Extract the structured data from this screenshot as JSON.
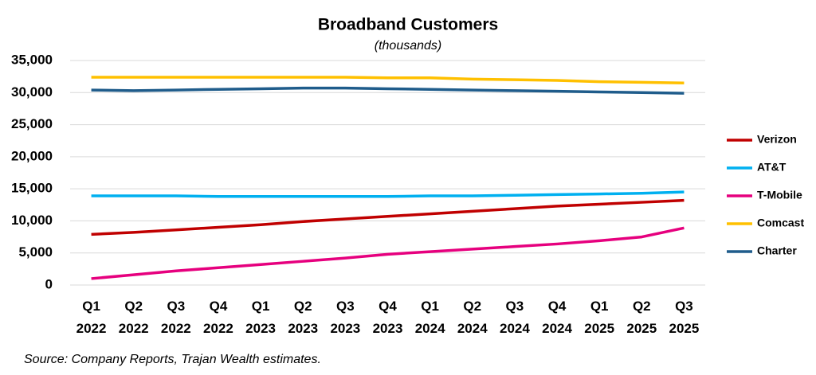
{
  "chart_data": {
    "type": "line",
    "title": "Broadband Customers",
    "subtitle": "(thousands)",
    "source": "Source: Company Reports, Trajan Wealth estimates.",
    "categories": [
      "Q1 2022",
      "Q2 2022",
      "Q3 2022",
      "Q4 2022",
      "Q1 2023",
      "Q2 2023",
      "Q3 2023",
      "Q4 2023",
      "Q1 2024",
      "Q2 2024",
      "Q3 2024",
      "Q4 2024",
      "Q1 2025",
      "Q2 2025",
      "Q3 2025"
    ],
    "series": [
      {
        "name": "Verizon",
        "color": "#c00000",
        "values": [
          7900,
          8200,
          8600,
          9000,
          9400,
          9900,
          10300,
          10700,
          11100,
          11500,
          11900,
          12300,
          12600,
          12900,
          13200
        ]
      },
      {
        "name": "AT&T",
        "color": "#00b0f0",
        "values": [
          13900,
          13900,
          13900,
          13800,
          13800,
          13800,
          13800,
          13800,
          13900,
          13900,
          14000,
          14100,
          14200,
          14300,
          14500
        ]
      },
      {
        "name": "T-Mobile",
        "color": "#e6007e",
        "values": [
          1000,
          1600,
          2200,
          2700,
          3200,
          3700,
          4200,
          4800,
          5200,
          5600,
          6000,
          6400,
          6900,
          7500,
          8900
        ]
      },
      {
        "name": "Comcast",
        "color": "#ffc000",
        "values": [
          32400,
          32400,
          32400,
          32400,
          32400,
          32400,
          32400,
          32300,
          32300,
          32100,
          32000,
          31900,
          31700,
          31600,
          31500
        ]
      },
      {
        "name": "Charter",
        "color": "#1f5c8b",
        "values": [
          30400,
          30300,
          30400,
          30500,
          30600,
          30700,
          30700,
          30600,
          30500,
          30400,
          30300,
          30200,
          30100,
          30000,
          29900
        ]
      }
    ],
    "ylim": [
      0,
      35000
    ],
    "yticks": [
      0,
      {
        "value": 5000,
        "label": "5,000"
      },
      {
        "value": 10000,
        "label": "10,000"
      },
      {
        "value": 15000,
        "label": "15,000"
      },
      {
        "value": 20000,
        "label": "20,000"
      },
      {
        "value": 25000,
        "label": "25,000"
      },
      {
        "value": 30000,
        "label": "30,000"
      },
      {
        "value": 35000,
        "label": "35,000"
      }
    ],
    "grid": true,
    "legend": "right"
  }
}
